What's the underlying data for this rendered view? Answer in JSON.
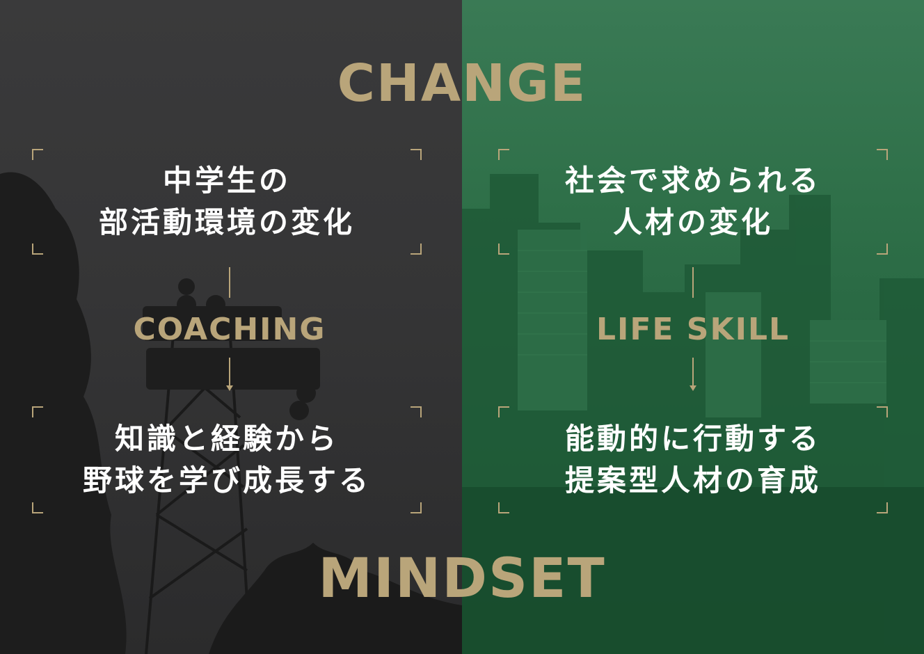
{
  "headline_top": "CHANGE",
  "headline_bottom": "MINDSET",
  "left": {
    "top_box": [
      "中学生の",
      "部活動環境の変化"
    ],
    "label": "COACHING",
    "bottom_box": [
      "知識と経験から",
      "野球を学び成長する"
    ]
  },
  "right": {
    "top_box": [
      "社会で求められる",
      "人材の変化"
    ],
    "label": "LIFE SKILL",
    "bottom_box": [
      "能動的に行動する",
      "提案型人材の育成"
    ]
  },
  "colors": {
    "accent": "#b9a57a",
    "left_bg": "#353536",
    "right_bg": "#2a6b45",
    "text": "#ffffff"
  }
}
